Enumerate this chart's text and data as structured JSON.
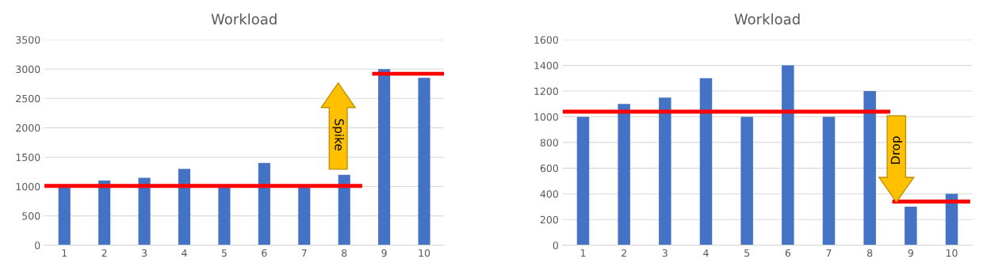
{
  "chart_data": [
    {
      "type": "bar",
      "title": "Workload",
      "x": [
        1,
        2,
        3,
        4,
        5,
        6,
        7,
        8,
        9,
        10
      ],
      "xlim": [
        0.5,
        10.5
      ],
      "xticks": [
        1,
        2,
        3,
        4,
        5,
        6,
        7,
        8,
        9,
        10
      ],
      "ylim": [
        0,
        3500
      ],
      "yticks": [
        0,
        500,
        1000,
        1500,
        2000,
        2500,
        3000,
        3500
      ],
      "grid": "y",
      "series": [
        {
          "color": "#4472c4",
          "values": [
            1000,
            1100,
            1150,
            1300,
            1000,
            1400,
            1000,
            1200,
            3000,
            2850
          ]
        },
        {
          "type": "line",
          "color": "#ff0000",
          "x": [
            0.5,
            8.45
          ],
          "values": [
            1010,
            1010
          ]
        },
        {
          "type": "line",
          "color": "#ff0000",
          "x": [
            8.7,
            10.5
          ],
          "values": [
            2920,
            2920
          ]
        }
      ],
      "annotations": [
        "Spike"
      ]
    },
    {
      "type": "bar",
      "title": "Workload",
      "x": [
        1,
        2,
        3,
        4,
        5,
        6,
        7,
        8,
        9,
        10
      ],
      "xlim": [
        0.5,
        10.5
      ],
      "xticks": [
        1,
        2,
        3,
        4,
        5,
        6,
        7,
        8,
        9,
        10
      ],
      "ylim": [
        0,
        1600
      ],
      "yticks": [
        0,
        200,
        400,
        600,
        800,
        1000,
        1200,
        1400,
        1600
      ],
      "grid": "y",
      "series": [
        {
          "color": "#4472c4",
          "values": [
            1000,
            1100,
            1150,
            1300,
            1000,
            1400,
            1000,
            1200,
            300,
            400
          ]
        },
        {
          "type": "line",
          "color": "#ff0000",
          "x": [
            0.5,
            8.5
          ],
          "values": [
            1040,
            1040
          ]
        },
        {
          "type": "line",
          "color": "#ff0000",
          "x": [
            8.55,
            10.45
          ],
          "values": [
            340,
            340
          ]
        }
      ],
      "annotations": [
        "Drop"
      ]
    }
  ]
}
